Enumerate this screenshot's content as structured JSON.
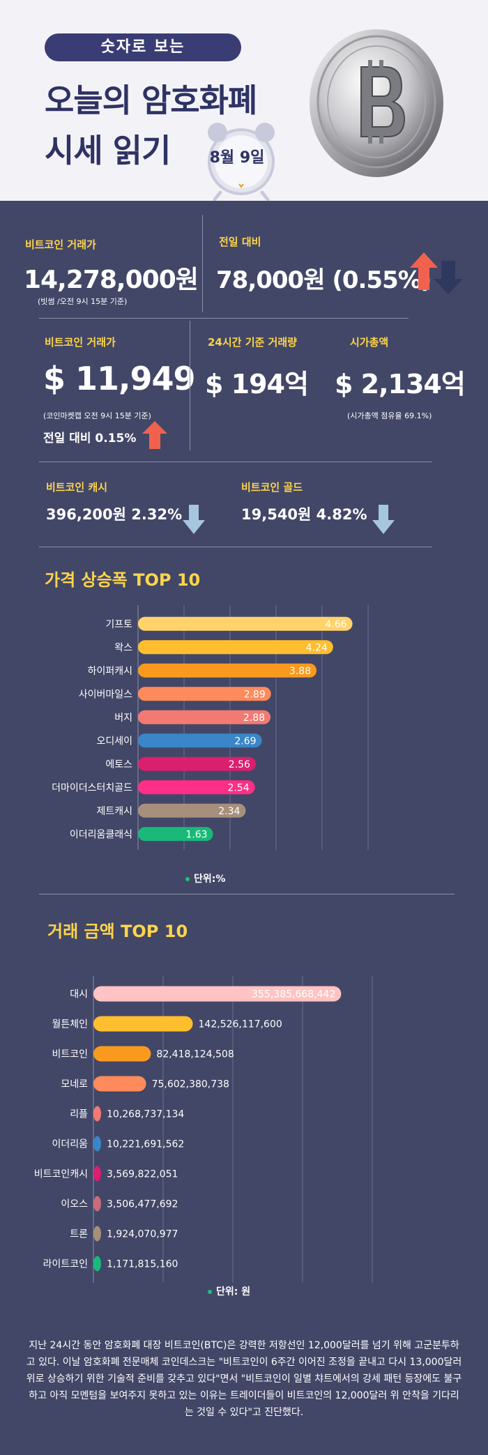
{
  "header": {
    "pill": "숫자로 보는",
    "title_line1": "오늘의 암호화폐",
    "title_line2": "시세 읽기",
    "date": "8월 9일"
  },
  "stats": {
    "btc_krw_label": "비트코인 거래가",
    "btc_krw_value": "14,278,000원",
    "btc_krw_note": "(빗썸 /오전 9시 15분 기준)",
    "prev_day_label": "전일 대비",
    "prev_day_value": "78,000원 (0.55%)",
    "btc_usd_label": "비트코인 거래가",
    "btc_usd_value": "$ 11,949",
    "btc_usd_note": "(코인마켓캡 오전 9시 15분 기준)",
    "btc_usd_change": "전일 대비 0.15%",
    "volume_label": "24시간 기준 거래량",
    "volume_value": "$ 194억",
    "mcap_label": "시가총액",
    "mcap_value": "$ 2,134억",
    "mcap_note": "(시가총액 점유율 69.1%)",
    "bch_label": "비트코인 캐시",
    "bch_value": "396,200원  2.32%",
    "btg_label": "비트코인 골드",
    "btg_value": "19,540원  4.82%"
  },
  "colors": {
    "up": "#f0624d",
    "down": "#a6c6de",
    "down_dark": "#2f3960",
    "accent": "#ffd54a",
    "panel": "#424767"
  },
  "chart_data": [
    {
      "type": "bar",
      "orientation": "horizontal",
      "title": "가격 상승폭 TOP 10",
      "unit": "단위:%",
      "categories": [
        "기프토",
        "왁스",
        "하이퍼캐시",
        "사이버마일스",
        "버지",
        "오디세이",
        "에토스",
        "더마이더스터치골드",
        "제트캐시",
        "이더리움클래식"
      ],
      "values": [
        4.66,
        4.24,
        3.88,
        2.89,
        2.88,
        2.69,
        2.56,
        2.54,
        2.34,
        1.63
      ],
      "value_labels": [
        "4.66",
        "4.24",
        "3.88",
        "2.89",
        "2.88",
        "2.69",
        "2.56",
        "2.54",
        "2.34",
        "1.63"
      ],
      "colors": [
        "#ffd36a",
        "#ffbe2e",
        "#f99a1e",
        "#ff8a5b",
        "#f27a72",
        "#3a86c8",
        "#d91f6e",
        "#ff2e86",
        "#a68f7c",
        "#19b97a"
      ],
      "xlim": [
        0,
        5
      ],
      "grid": true
    },
    {
      "type": "bar",
      "orientation": "horizontal",
      "title": "거래 금액 TOP 10",
      "unit": "단위: 원",
      "categories": [
        "대시",
        "월튼체인",
        "비트코인",
        "모네로",
        "리플",
        "이더리움",
        "비트코인캐시",
        "이오스",
        "트론",
        "라이트코인"
      ],
      "values": [
        355385668442,
        142526117600,
        82418124508,
        75602380738,
        10268737134,
        10221691562,
        3569822051,
        3506477692,
        1924070977,
        1171815160
      ],
      "value_labels": [
        "355,385,668,442",
        "142,526,117,600",
        "82,418,124,508",
        "75,602,380,738",
        "10,268,737,134",
        "10,221,691,562",
        "3,569,822,051",
        "3,506,477,692",
        "1,924,070,977",
        "1,171,815,160"
      ],
      "colors": [
        "#ffc3c3",
        "#ffbe2e",
        "#f99a1e",
        "#ff8a5b",
        "#f27a72",
        "#3a86c8",
        "#d91f6e",
        "#c96b7a",
        "#a68f7c",
        "#19b97a"
      ],
      "xlim": [
        0,
        400000000000
      ],
      "grid": true
    }
  ],
  "summary": "지난 24시간 동안 암호화폐 대장 비트코인(BTC)은 강력한 저항선인 12,000달러를 넘기 위해 고군분투하고 있다. 이날 암호화폐 전문매체 코인데스크는 \"비트코인이 6주간 이어진 조정을 끝내고 다시 13,000달러 위로 상승하기 위한 기술적 준비를 갖추고 있다\"면서 \"비트코인이 일별 챠트에서의 강세 패턴 등장에도 불구하고 아직 모멘텀을 보여주지 못하고 있는 이유는 트레이더들이 비트코인의 12,000달러 위 안착을 기다리는 것일 수 있다\"고 진단했다."
}
